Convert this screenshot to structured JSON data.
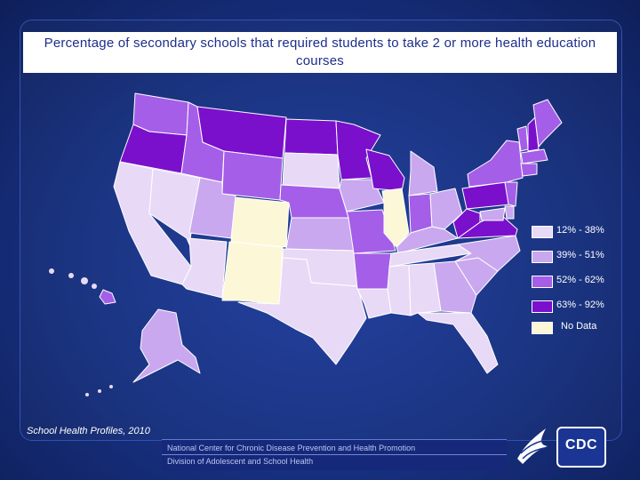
{
  "title": "Percentage of secondary schools that required students to take 2 or more health education courses",
  "legend": {
    "items": [
      {
        "label": "12% - 38%",
        "color": "#e8daf7"
      },
      {
        "label": "39% - 51%",
        "color": "#c9a8f0"
      },
      {
        "label": "52% - 62%",
        "color": "#a55ee8"
      },
      {
        "label": "63% - 92%",
        "color": "#7a10cc"
      },
      {
        "label": "No Data",
        "color": "#fcf7d6"
      }
    ]
  },
  "source": "School Health Profiles, 2010",
  "footer": {
    "line1": "National Center for Chronic Disease Prevention and Health Promotion",
    "line2": "Division of Adolescent and School Health"
  },
  "logo": {
    "text": "CDC"
  },
  "states": [
    {
      "id": "WA",
      "category": 3
    },
    {
      "id": "OR",
      "category": 4
    },
    {
      "id": "CA",
      "category": 1
    },
    {
      "id": "NV",
      "category": 1
    },
    {
      "id": "ID",
      "category": 3
    },
    {
      "id": "MT",
      "category": 4
    },
    {
      "id": "WY",
      "category": 3
    },
    {
      "id": "UT",
      "category": 2
    },
    {
      "id": "AZ",
      "category": 1
    },
    {
      "id": "CO",
      "category": 5
    },
    {
      "id": "NM",
      "category": 5
    },
    {
      "id": "ND",
      "category": 4
    },
    {
      "id": "SD",
      "category": 1
    },
    {
      "id": "NE",
      "category": 3
    },
    {
      "id": "KS",
      "category": 2
    },
    {
      "id": "OK",
      "category": 1
    },
    {
      "id": "TX",
      "category": 1
    },
    {
      "id": "MN",
      "category": 4
    },
    {
      "id": "IA",
      "category": 2
    },
    {
      "id": "MO",
      "category": 3
    },
    {
      "id": "AR",
      "category": 3
    },
    {
      "id": "LA",
      "category": 1
    },
    {
      "id": "WI",
      "category": 4
    },
    {
      "id": "IL",
      "category": 5
    },
    {
      "id": "MI",
      "category": 2
    },
    {
      "id": "IN",
      "category": 3
    },
    {
      "id": "OH",
      "category": 2
    },
    {
      "id": "KY",
      "category": 2
    },
    {
      "id": "TN",
      "category": 1
    },
    {
      "id": "MS",
      "category": 1
    },
    {
      "id": "AL",
      "category": 1
    },
    {
      "id": "GA",
      "category": 2
    },
    {
      "id": "FL",
      "category": 1
    },
    {
      "id": "SC",
      "category": 2
    },
    {
      "id": "NC",
      "category": 2
    },
    {
      "id": "VA",
      "category": 4
    },
    {
      "id": "WV",
      "category": 4
    },
    {
      "id": "PA",
      "category": 4
    },
    {
      "id": "NY",
      "category": 3
    },
    {
      "id": "VT",
      "category": 3
    },
    {
      "id": "NH",
      "category": 4
    },
    {
      "id": "ME",
      "category": 3
    },
    {
      "id": "MA",
      "category": 3
    },
    {
      "id": "CT",
      "category": 3
    },
    {
      "id": "NJ",
      "category": 3
    },
    {
      "id": "DE",
      "category": 2
    },
    {
      "id": "MD",
      "category": 2
    },
    {
      "id": "AK",
      "category": 2
    },
    {
      "id": "HI",
      "category": 3
    }
  ]
}
